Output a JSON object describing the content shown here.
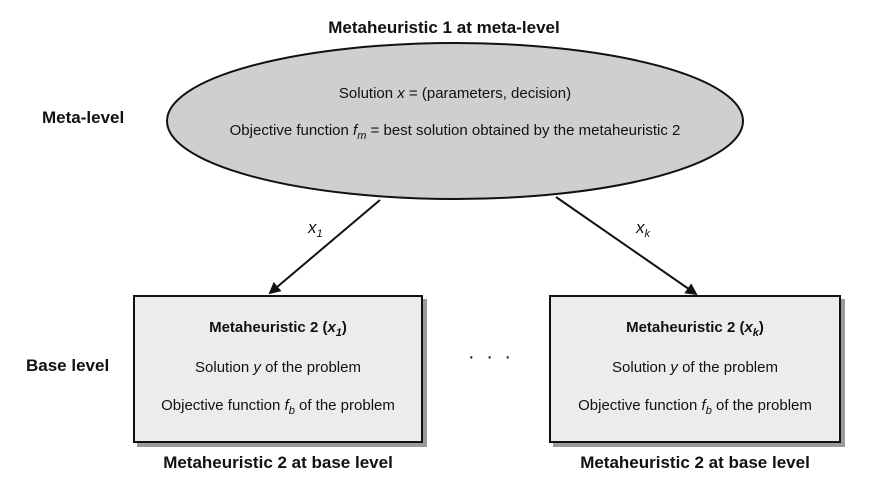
{
  "top_title": "Metaheuristic 1 at meta-level",
  "labels": {
    "meta_level": "Meta-level",
    "base_level": "Base level"
  },
  "meta_node": {
    "line1_prefix": "Solution ",
    "line1_var": "x",
    "line1_suffix": " = (parameters, decision)",
    "line2_prefix": "Objective function ",
    "line2_var": "f",
    "line2_sub": "m",
    "line2_suffix": " = best solution obtained by the metaheuristic 2"
  },
  "arrows": [
    {
      "var": "x",
      "sub": "1"
    },
    {
      "var": "x",
      "sub": "k"
    }
  ],
  "base_nodes": [
    {
      "title_prefix": "Metaheuristic 2 (",
      "title_var": "x",
      "title_sub": "1",
      "title_suffix": ")",
      "line1_prefix": "Solution ",
      "line1_var": "y",
      "line1_suffix": " of the problem",
      "line2_prefix": "Objective function ",
      "line2_var": "f",
      "line2_sub": "b",
      "line2_suffix": " of the problem",
      "caption": "Metaheuristic 2 at base level"
    },
    {
      "title_prefix": "Metaheuristic 2 (",
      "title_var": "x",
      "title_sub": "k",
      "title_suffix": ")",
      "line1_prefix": "Solution ",
      "line1_var": "y",
      "line1_suffix": " of the problem",
      "line2_prefix": "Objective function ",
      "line2_var": "f",
      "line2_sub": "b",
      "line2_suffix": " of the problem",
      "caption": "Metaheuristic 2 at base level"
    }
  ],
  "ellipsis": "· · ·",
  "colors": {
    "ellipse_fill": "#cfcfcf",
    "box_fill": "#ececec",
    "stroke": "#111111"
  }
}
